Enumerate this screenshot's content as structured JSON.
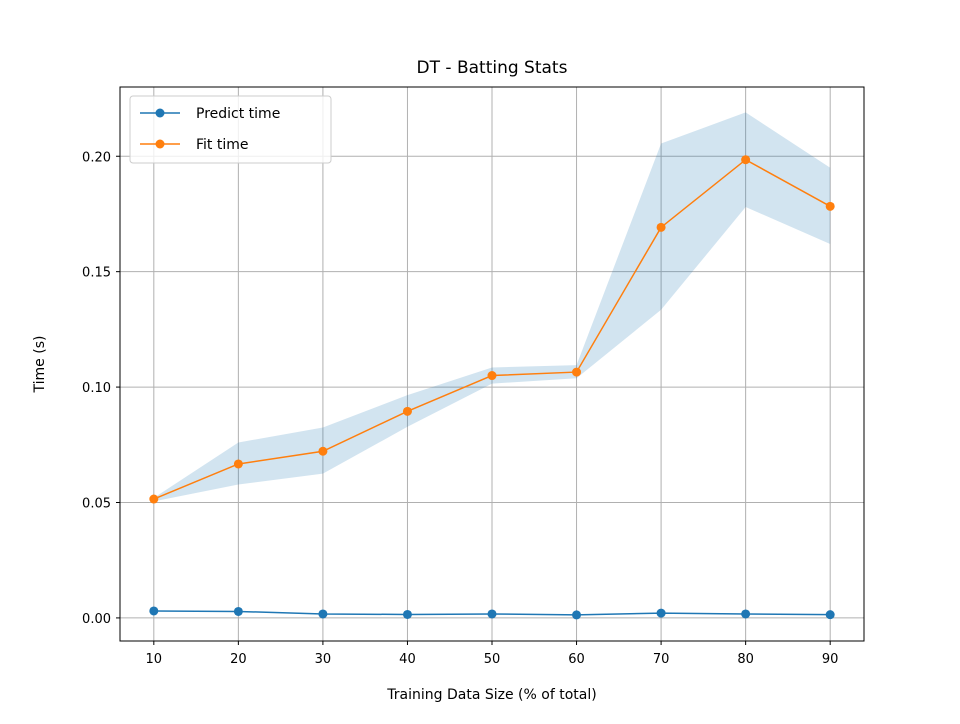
{
  "chart_data": {
    "type": "line",
    "title": "DT - Batting Stats",
    "xlabel": "Training Data Size (% of total)",
    "ylabel": "Time (s)",
    "x": [
      10,
      20,
      30,
      40,
      50,
      60,
      70,
      80,
      90
    ],
    "xlim": [
      6,
      94
    ],
    "ylim": [
      -0.01,
      0.23
    ],
    "xticks": [
      10,
      20,
      30,
      40,
      50,
      60,
      70,
      80,
      90
    ],
    "xtick_labels": [
      "10",
      "20",
      "30",
      "40",
      "50",
      "60",
      "70",
      "80",
      "90"
    ],
    "yticks": [
      0.0,
      0.05,
      0.1,
      0.15,
      0.2
    ],
    "ytick_labels": [
      "0.00",
      "0.05",
      "0.10",
      "0.15",
      "0.20"
    ],
    "grid": true,
    "legend_position": "top-left",
    "series": [
      {
        "name": "Predict time",
        "color": "#1f77b4",
        "values": [
          0.003,
          0.0028,
          0.0017,
          0.0015,
          0.0017,
          0.0013,
          0.0021,
          0.0017,
          0.0014
        ]
      },
      {
        "name": "Fit time",
        "color": "#ff7f0e",
        "values": [
          0.0515,
          0.0667,
          0.0722,
          0.0895,
          0.105,
          0.1065,
          0.1692,
          0.1985,
          0.1783
        ],
        "band": {
          "color": "#1f77b4",
          "lower": [
            0.0505,
            0.0578,
            0.0625,
            0.0828,
            0.1015,
            0.1038,
            0.1335,
            0.178,
            0.162
          ],
          "upper": [
            0.052,
            0.076,
            0.0825,
            0.0965,
            0.1085,
            0.1095,
            0.2055,
            0.219,
            0.195
          ]
        }
      }
    ]
  }
}
